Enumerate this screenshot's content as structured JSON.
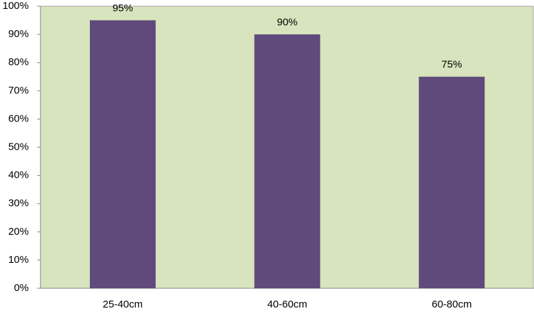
{
  "chart_data": {
    "type": "bar",
    "categories": [
      "25-40cm",
      "40-60cm",
      "60-80cm"
    ],
    "values": [
      95,
      90,
      75
    ],
    "value_labels": [
      "95%",
      "90%",
      "75%"
    ],
    "color": "#604a7b",
    "background": "#d7e4bd",
    "ylim": [
      0,
      100
    ],
    "yticks": [
      {
        "value": 0,
        "label": "0%"
      },
      {
        "value": 10,
        "label": "10%"
      },
      {
        "value": 20,
        "label": "20%"
      },
      {
        "value": 30,
        "label": "30%"
      },
      {
        "value": 40,
        "label": "40%"
      },
      {
        "value": 50,
        "label": "50%"
      },
      {
        "value": 60,
        "label": "60%"
      },
      {
        "value": 70,
        "label": "70%"
      },
      {
        "value": 80,
        "label": "80%"
      },
      {
        "value": 90,
        "label": "90%"
      },
      {
        "value": 100,
        "label": "100%"
      }
    ],
    "grid": false
  }
}
